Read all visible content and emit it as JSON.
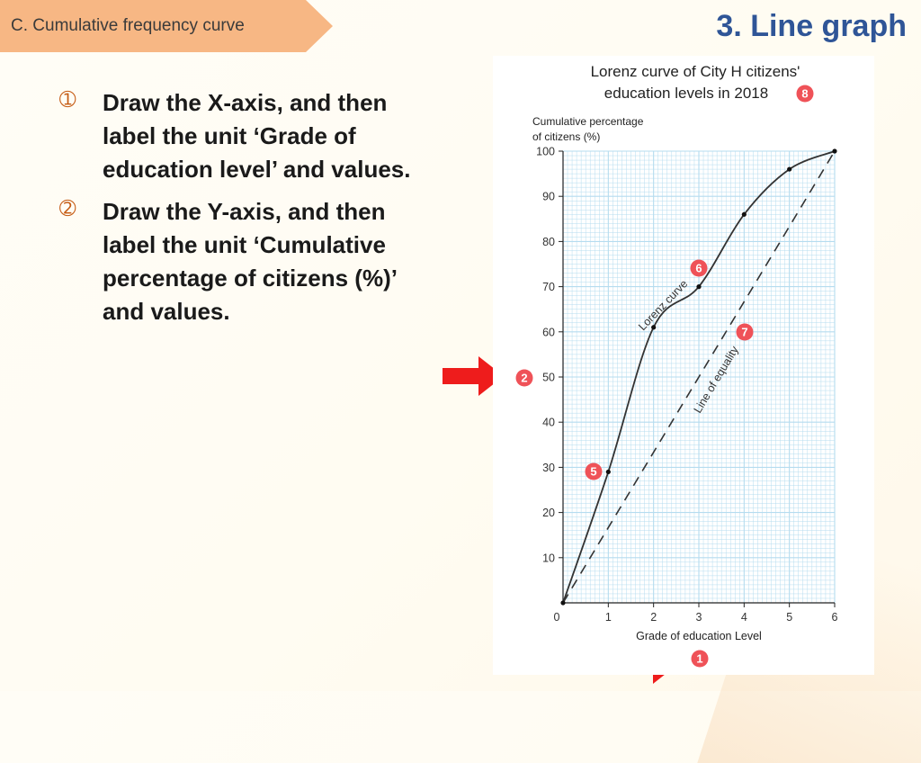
{
  "header": {
    "section_label": "C. Cumulative frequency curve",
    "slide_title": "3. Line graph"
  },
  "steps": [
    {
      "marker": "➀",
      "text": "Draw the X-axis, and then label the unit ‘Grade of education level’ and values."
    },
    {
      "marker": "➁",
      "text": "Draw the Y-axis, and then label the unit ‘Cumulative percentage of citizens (%)’ and values."
    }
  ],
  "colors": {
    "arrow": "#ee1c1c",
    "badge": "#ef5258",
    "grid": "#b5dcef",
    "title": "#2f5597"
  },
  "chart_data": {
    "type": "line",
    "title": [
      "Lorenz curve of City H citizens'",
      "education levels in 2018"
    ],
    "ylabel": [
      "Cumulative percentage",
      "of citizens (%)"
    ],
    "xlabel": "Grade of education Level",
    "xlim": [
      0,
      6
    ],
    "ylim": [
      0,
      100
    ],
    "x_ticks": [
      "0",
      "1",
      "2",
      "3",
      "4",
      "5",
      "6"
    ],
    "y_ticks": [
      "10",
      "20",
      "30",
      "40",
      "50",
      "60",
      "70",
      "80",
      "90",
      "100"
    ],
    "grid": true,
    "series": [
      {
        "name": "Lorenz curve",
        "style": "solid",
        "x": [
          0,
          1,
          2,
          3,
          4,
          5,
          6
        ],
        "y": [
          0,
          29,
          61,
          70,
          86,
          96,
          100
        ]
      },
      {
        "name": "Line of equality",
        "style": "dashed",
        "x": [
          0,
          6
        ],
        "y": [
          0,
          100
        ]
      }
    ],
    "badges": [
      "8",
      "6",
      "7",
      "2",
      "5",
      "1"
    ]
  }
}
